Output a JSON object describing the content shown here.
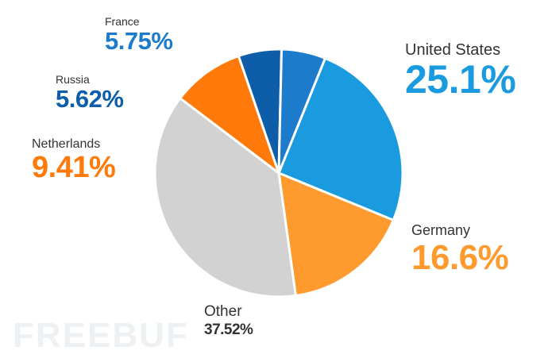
{
  "chart_data": {
    "type": "pie",
    "title": "",
    "slices": [
      {
        "label": "United States",
        "value": 25.1,
        "display": "25.1%",
        "color": "#1a9be0"
      },
      {
        "label": "Germany",
        "value": 16.6,
        "display": "16.6%",
        "color": "#ff9a2e"
      },
      {
        "label": "Other",
        "value": 37.52,
        "display": "37.52%",
        "color": "#d2d2d2"
      },
      {
        "label": "Netherlands",
        "value": 9.41,
        "display": "9.41%",
        "color": "#ff7a0a"
      },
      {
        "label": "Russia",
        "value": 5.62,
        "display": "5.62%",
        "color": "#0e5da8"
      },
      {
        "label": "France",
        "value": 5.75,
        "display": "5.75%",
        "color": "#1c7ccb"
      }
    ],
    "label_colors": {
      "United States": "#1a9be0",
      "Germany": "#ff9a2e",
      "Other": "#333333",
      "Netherlands": "#ff7a0a",
      "Russia": "#0e5da8",
      "France": "#1c7ccb"
    }
  },
  "watermark": "FREEBUF"
}
